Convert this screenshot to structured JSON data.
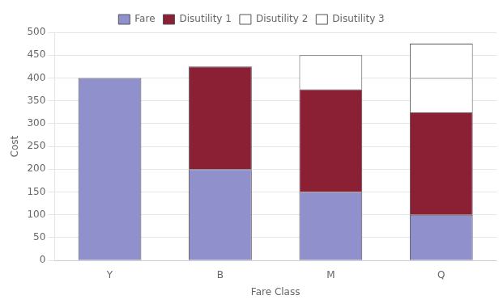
{
  "chart_data": {
    "type": "bar",
    "stacked": true,
    "categories": [
      "Y",
      "B",
      "M",
      "Q"
    ],
    "series": [
      {
        "name": "Fare",
        "color": "#9090cc",
        "values": [
          400,
          200,
          150,
          100
        ]
      },
      {
        "name": "Disutility 1",
        "color": "#8b2035",
        "values": [
          0,
          225,
          225,
          225
        ]
      },
      {
        "name": "Disutility 2",
        "color": "#ffffff",
        "values": [
          0,
          0,
          0,
          75
        ]
      },
      {
        "name": "Disutility 3",
        "color": "#ffffff",
        "values": [
          0,
          0,
          75,
          75
        ]
      }
    ],
    "xlabel": "Fare Class",
    "ylabel": "Cost",
    "ylim": [
      0,
      500
    ],
    "yticks": [
      0,
      50,
      100,
      150,
      200,
      250,
      300,
      350,
      400,
      450,
      500
    ],
    "grid": true,
    "legend": "top"
  }
}
